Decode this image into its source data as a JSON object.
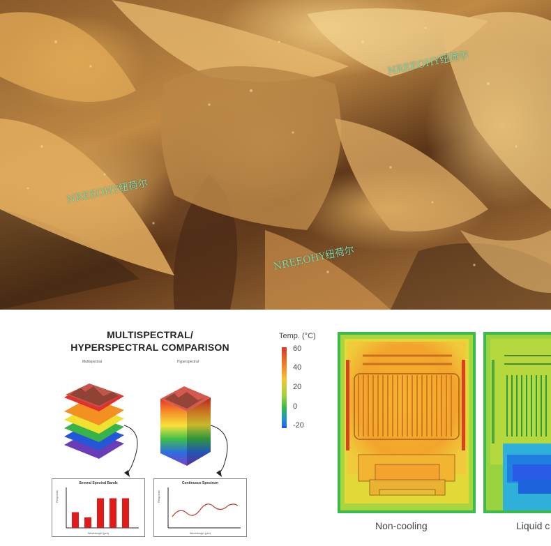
{
  "photo": {
    "watermarks": [
      "NREEOHY纽荷尔",
      "NREEOHY纽荷尔",
      "NREEOHY纽荷尔"
    ]
  },
  "infographic": {
    "title_line1": "MULTISPECTRAL/",
    "title_line2": "HYPERSPECTRAL COMPARISON",
    "multispectral_label": "Multispectral",
    "hyperspectral_label": "Hyperspectral",
    "left_box_title": "Several Spectral Bands",
    "right_box_title": "Continuous Spectrum",
    "x_axis_label": "Wavelength (μm)",
    "y_axis_label": "Response",
    "band_values": [
      0.45,
      0.3,
      0.85,
      0.85,
      0.85
    ]
  },
  "thermal": {
    "legend_title": "Temp. (°C)",
    "legend_ticks": [
      "60",
      "40",
      "20",
      "0",
      "-20"
    ],
    "caption_left": "Non-cooling",
    "caption_right": "Liquid c"
  }
}
